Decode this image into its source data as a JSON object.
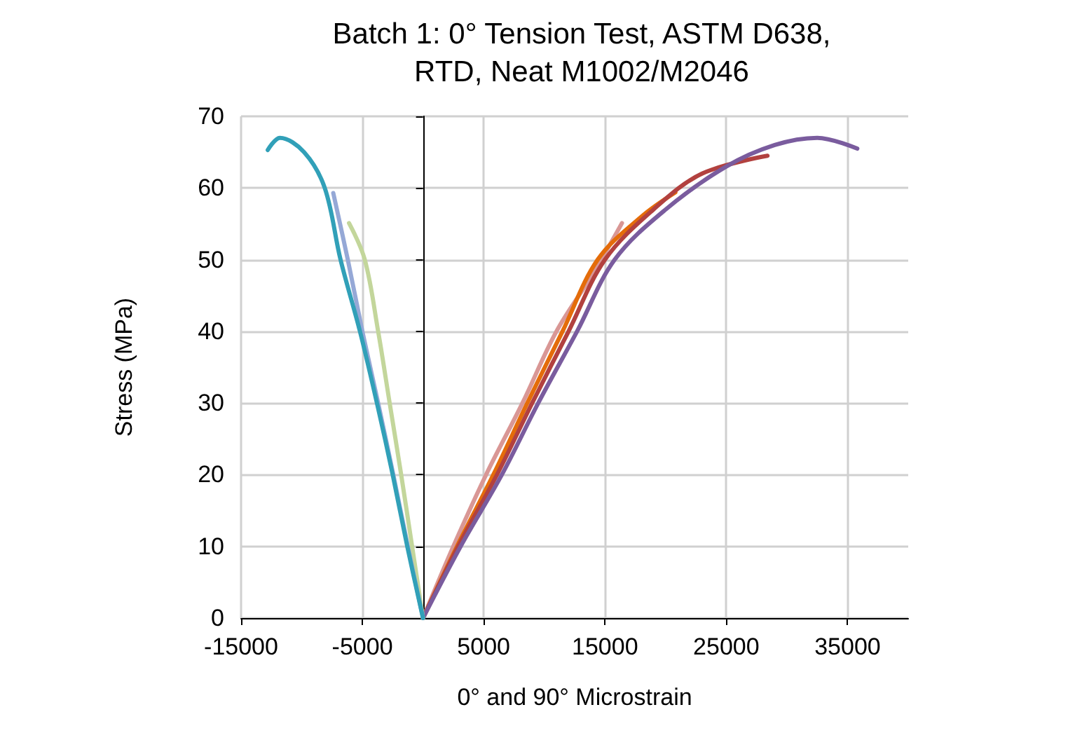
{
  "chart_data": {
    "type": "line",
    "title": "Batch 1: 0° Tension Test, ASTM D638,\nRTD, Neat M1002/M2046",
    "xlabel": "0° and 90° Microstrain",
    "ylabel": "Stress (MPa)",
    "xlim": [
      -15000,
      40000
    ],
    "xticks": [
      -15000,
      -5000,
      5000,
      15000,
      25000,
      35000
    ],
    "ylim": [
      0,
      70
    ],
    "yticks": [
      0,
      10,
      20,
      30,
      40,
      50,
      60,
      70
    ],
    "grid": true,
    "marker": "none",
    "line_style": "solid",
    "series": [
      {
        "color": "#d99795",
        "x": [
          0,
          2500,
          5200,
          8200,
          11000,
          14000,
          16400
        ],
        "values": [
          0,
          10,
          20,
          30,
          40,
          48,
          55.1
        ]
      },
      {
        "color": "#e46c0a",
        "x": [
          0,
          2800,
          5800,
          8600,
          11500,
          14400,
          18000,
          20800
        ],
        "values": [
          0,
          10,
          20,
          30,
          40,
          50,
          56,
          59.4
        ]
      },
      {
        "color": "#b2413f",
        "x": [
          0,
          2900,
          6100,
          9000,
          12000,
          15000,
          19000,
          23000,
          28400
        ],
        "values": [
          0,
          10,
          20,
          30,
          40,
          50,
          57,
          62,
          64.5
        ]
      },
      {
        "color": "#7a5c9e",
        "x": [
          0,
          3100,
          6500,
          9500,
          12700,
          15800,
          20000,
          25000,
          29000,
          32500,
          35800
        ],
        "values": [
          0,
          10,
          20,
          30,
          40,
          50,
          57,
          63,
          66,
          67,
          65.5
        ]
      },
      {
        "color": "#c3d69b",
        "x": [
          0,
          -900,
          -1800,
          -2750,
          -3700,
          -4800,
          -6100
        ],
        "values": [
          0,
          10,
          20,
          30,
          40,
          50,
          55.1
        ]
      },
      {
        "color": "#95a8d6",
        "x": [
          0,
          -1250,
          -2450,
          -3700,
          -5000,
          -6200,
          -7400
        ],
        "values": [
          0,
          10,
          20,
          30,
          40,
          50,
          59.3
        ]
      },
      {
        "color": "#31a0b8",
        "x": [
          0,
          -1300,
          -2500,
          -3800,
          -5200,
          -6800,
          -8100,
          -9800,
          -11800,
          -12800
        ],
        "values": [
          0,
          10,
          20,
          30,
          40,
          50,
          60,
          65,
          67,
          65.3
        ]
      }
    ]
  }
}
